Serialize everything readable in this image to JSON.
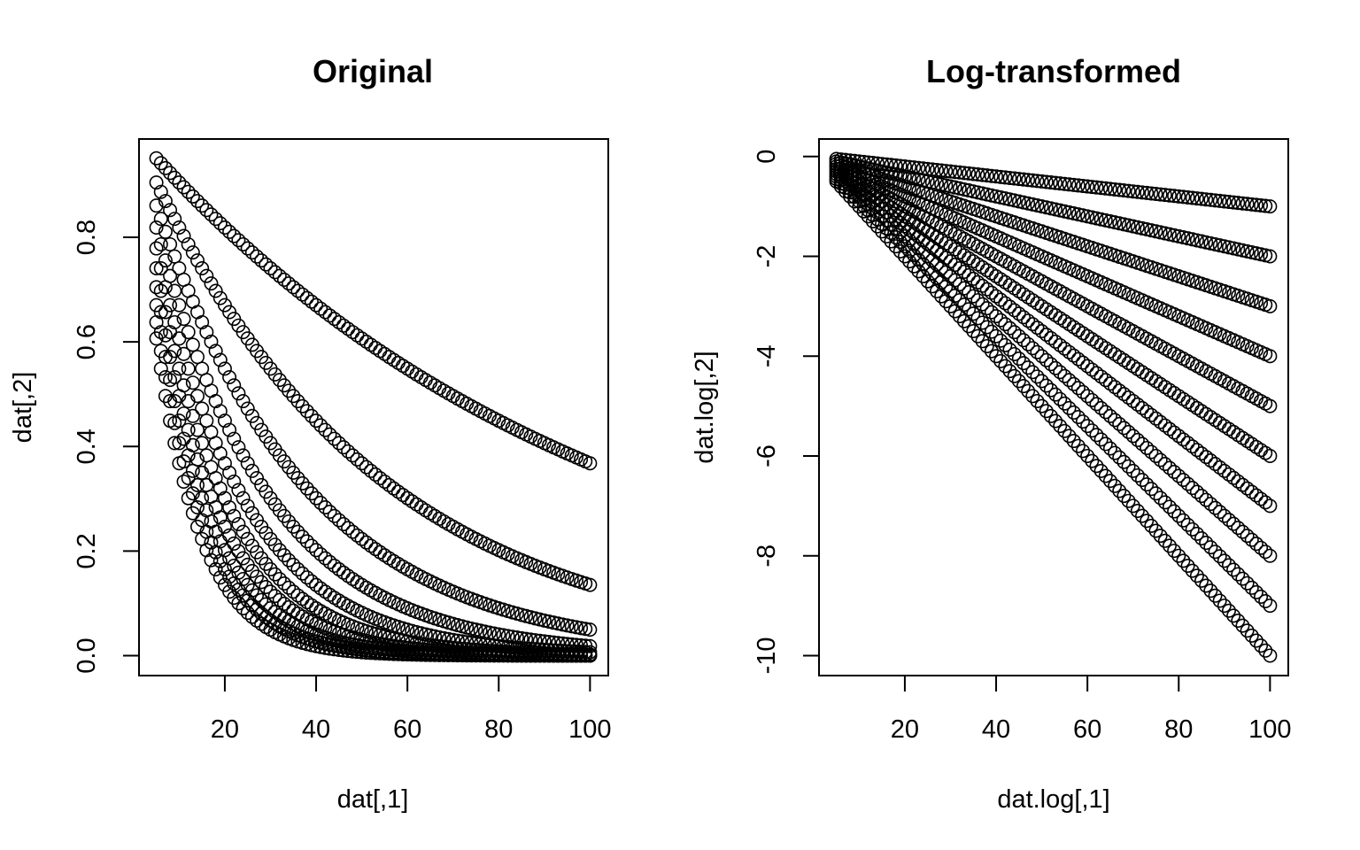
{
  "chart_data": [
    {
      "type": "scatter",
      "title": "Original",
      "xlabel": "dat[,1]",
      "ylabel": "dat[,2]",
      "xlim": [
        1.2,
        104
      ],
      "ylim": [
        -0.038,
        0.988
      ],
      "xticks": [
        20,
        40,
        60,
        80,
        100
      ],
      "yticks": [
        0.0,
        0.2,
        0.4,
        0.6,
        0.8
      ],
      "ytick_labels": [
        "0.0",
        "0.2",
        "0.4",
        "0.6",
        "0.8"
      ],
      "x_range": [
        5,
        100
      ],
      "x_step": 1,
      "marker": "open-circle",
      "grid": false,
      "legend": "none",
      "series": [
        {
          "formula": "y = exp(-k*x/100)",
          "k": 1
        },
        {
          "formula": "y = exp(-k*x/100)",
          "k": 2
        },
        {
          "formula": "y = exp(-k*x/100)",
          "k": 3
        },
        {
          "formula": "y = exp(-k*x/100)",
          "k": 4
        },
        {
          "formula": "y = exp(-k*x/100)",
          "k": 5
        },
        {
          "formula": "y = exp(-k*x/100)",
          "k": 6
        },
        {
          "formula": "y = exp(-k*x/100)",
          "k": 7
        },
        {
          "formula": "y = exp(-k*x/100)",
          "k": 8
        },
        {
          "formula": "y = exp(-k*x/100)",
          "k": 9
        },
        {
          "formula": "y = exp(-k*x/100)",
          "k": 10
        }
      ]
    },
    {
      "type": "scatter",
      "title": "Log-transformed",
      "xlabel": "dat.log[,1]",
      "ylabel": "dat.log[,2]",
      "xlim": [
        1.2,
        104
      ],
      "ylim": [
        -10.4,
        0.35
      ],
      "xticks": [
        20,
        40,
        60,
        80,
        100
      ],
      "yticks": [
        0,
        -2,
        -4,
        -6,
        -8,
        -10
      ],
      "ytick_labels": [
        "0",
        "-2",
        "-4",
        "-6",
        "-8",
        "-10"
      ],
      "x_range": [
        5,
        100
      ],
      "x_step": 1,
      "marker": "open-circle",
      "grid": false,
      "legend": "none",
      "series": [
        {
          "formula": "y = -k*x/100",
          "k": 1
        },
        {
          "formula": "y = -k*x/100",
          "k": 2
        },
        {
          "formula": "y = -k*x/100",
          "k": 3
        },
        {
          "formula": "y = -k*x/100",
          "k": 4
        },
        {
          "formula": "y = -k*x/100",
          "k": 5
        },
        {
          "formula": "y = -k*x/100",
          "k": 6
        },
        {
          "formula": "y = -k*x/100",
          "k": 7
        },
        {
          "formula": "y = -k*x/100",
          "k": 8
        },
        {
          "formula": "y = -k*x/100",
          "k": 9
        },
        {
          "formula": "y = -k*x/100",
          "k": 10
        }
      ]
    }
  ]
}
